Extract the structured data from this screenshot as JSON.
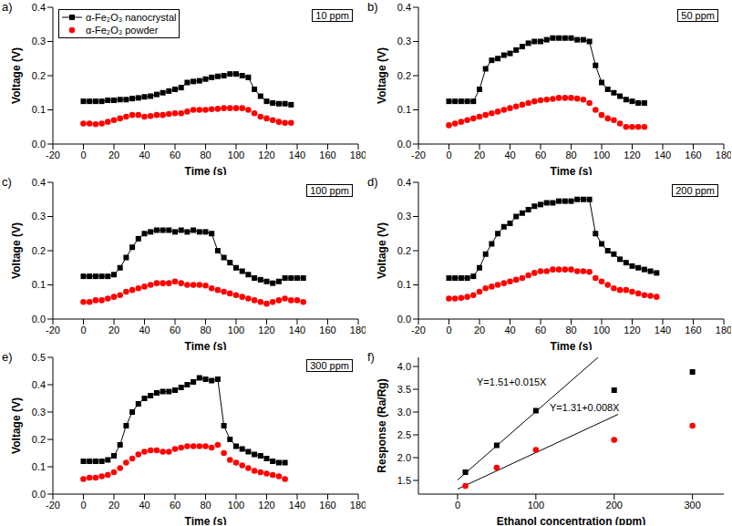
{
  "chart_data": [
    {
      "type": "line",
      "label": "a)",
      "annotation": "10 ppm",
      "x_label": "Time (s)",
      "y_label": "Voltage (V)",
      "legend": "upper left",
      "grid": false,
      "x": [
        0,
        4,
        8,
        12,
        16,
        20,
        24,
        28,
        32,
        36,
        40,
        44,
        48,
        52,
        56,
        60,
        64,
        68,
        72,
        76,
        80,
        84,
        88,
        92,
        96,
        100,
        104,
        108,
        112,
        116,
        120,
        124,
        128,
        132,
        136
      ],
      "xlim": [
        -20,
        180
      ],
      "xticks": [
        -20,
        0,
        20,
        40,
        60,
        80,
        100,
        120,
        140,
        160,
        180
      ],
      "ylim": [
        0,
        0.4
      ],
      "yticks": [
        {
          "value": 0,
          "label": "0.0"
        },
        0.1,
        0.2,
        0.3,
        0.4
      ],
      "series": [
        {
          "name": "α-Fe₂O₃ nanocrystal",
          "color": "#000000",
          "marker": "square",
          "line_style": "solid",
          "values": [
            0.125,
            0.125,
            0.125,
            0.125,
            0.128,
            0.128,
            0.13,
            0.13,
            0.133,
            0.135,
            0.138,
            0.14,
            0.145,
            0.15,
            0.155,
            0.16,
            0.165,
            0.18,
            0.183,
            0.185,
            0.19,
            0.195,
            0.198,
            0.2,
            0.205,
            0.205,
            0.2,
            0.195,
            0.16,
            0.14,
            0.125,
            0.12,
            0.118,
            0.118,
            0.115
          ]
        },
        {
          "name": "α-Fe₂O₃ powder",
          "color": "#ff0000",
          "marker": "circle",
          "line_style": "none",
          "values": [
            0.06,
            0.06,
            0.058,
            0.06,
            0.065,
            0.07,
            0.075,
            0.08,
            0.085,
            0.085,
            0.08,
            0.082,
            0.085,
            0.085,
            0.088,
            0.09,
            0.09,
            0.095,
            0.1,
            0.1,
            0.1,
            0.102,
            0.103,
            0.105,
            0.105,
            0.105,
            0.105,
            0.1,
            0.09,
            0.08,
            0.075,
            0.07,
            0.065,
            0.062,
            0.062
          ]
        }
      ]
    },
    {
      "type": "line",
      "label": "b)",
      "annotation": "50 ppm",
      "x_label": "Time (s)",
      "y_label": "Voltage (V)",
      "grid": false,
      "x": [
        0,
        4,
        8,
        12,
        16,
        20,
        24,
        28,
        32,
        36,
        40,
        44,
        48,
        52,
        56,
        60,
        64,
        68,
        72,
        76,
        80,
        84,
        88,
        92,
        96,
        100,
        104,
        108,
        112,
        116,
        120,
        124,
        128
      ],
      "xlim": [
        -20,
        180
      ],
      "xticks": [
        -20,
        0,
        20,
        40,
        60,
        80,
        100,
        120,
        140,
        160,
        180
      ],
      "ylim": [
        0,
        0.4
      ],
      "yticks": [
        {
          "value": 0,
          "label": "0.0"
        },
        0.1,
        0.2,
        0.3,
        0.4
      ],
      "series": [
        {
          "name": "α-Fe₂O₃ nanocrystal",
          "color": "#000000",
          "marker": "square",
          "line_style": "solid",
          "values": [
            0.125,
            0.125,
            0.125,
            0.125,
            0.125,
            0.16,
            0.22,
            0.245,
            0.25,
            0.26,
            0.265,
            0.275,
            0.285,
            0.295,
            0.3,
            0.3,
            0.305,
            0.31,
            0.31,
            0.31,
            0.31,
            0.305,
            0.305,
            0.3,
            0.23,
            0.18,
            0.16,
            0.15,
            0.14,
            0.13,
            0.125,
            0.12,
            0.12
          ]
        },
        {
          "name": "α-Fe₂O₃ powder",
          "color": "#ff0000",
          "marker": "circle",
          "line_style": "none",
          "values": [
            0.055,
            0.06,
            0.065,
            0.07,
            0.075,
            0.08,
            0.085,
            0.09,
            0.095,
            0.1,
            0.105,
            0.11,
            0.115,
            0.12,
            0.125,
            0.128,
            0.13,
            0.132,
            0.135,
            0.135,
            0.135,
            0.133,
            0.13,
            0.12,
            0.1,
            0.085,
            0.075,
            0.07,
            0.06,
            0.05,
            0.05,
            0.05,
            0.05
          ]
        }
      ]
    },
    {
      "type": "line",
      "label": "c)",
      "annotation": "100 ppm",
      "x_label": "Time (s)",
      "y_label": "Voltage (V)",
      "grid": false,
      "x": [
        0,
        4,
        8,
        12,
        16,
        20,
        24,
        28,
        32,
        36,
        40,
        44,
        48,
        52,
        56,
        60,
        64,
        68,
        72,
        76,
        80,
        84,
        88,
        92,
        96,
        100,
        104,
        108,
        112,
        116,
        120,
        124,
        128,
        132,
        136,
        140,
        144
      ],
      "xlim": [
        -20,
        180
      ],
      "xticks": [
        -20,
        0,
        20,
        40,
        60,
        80,
        100,
        120,
        140,
        160,
        180
      ],
      "ylim": [
        0,
        0.4
      ],
      "yticks": [
        {
          "value": 0,
          "label": "0.0"
        },
        0.1,
        0.2,
        0.3,
        0.4
      ],
      "series": [
        {
          "name": "α-Fe₂O₃ nanocrystal",
          "color": "#000000",
          "marker": "square",
          "line_style": "solid",
          "values": [
            0.125,
            0.125,
            0.125,
            0.125,
            0.125,
            0.13,
            0.15,
            0.18,
            0.21,
            0.235,
            0.25,
            0.255,
            0.26,
            0.26,
            0.26,
            0.255,
            0.26,
            0.255,
            0.26,
            0.255,
            0.255,
            0.25,
            0.2,
            0.18,
            0.165,
            0.15,
            0.14,
            0.13,
            0.12,
            0.115,
            0.11,
            0.105,
            0.11,
            0.12,
            0.12,
            0.12,
            0.12
          ]
        },
        {
          "name": "α-Fe₂O₃ powder",
          "color": "#ff0000",
          "marker": "circle",
          "line_style": "none",
          "values": [
            0.05,
            0.05,
            0.055,
            0.055,
            0.06,
            0.065,
            0.07,
            0.08,
            0.085,
            0.09,
            0.095,
            0.1,
            0.105,
            0.105,
            0.105,
            0.11,
            0.105,
            0.1,
            0.1,
            0.1,
            0.098,
            0.09,
            0.085,
            0.08,
            0.075,
            0.07,
            0.065,
            0.06,
            0.055,
            0.05,
            0.045,
            0.05,
            0.055,
            0.06,
            0.055,
            0.055,
            0.05
          ]
        }
      ]
    },
    {
      "type": "line",
      "label": "d)",
      "annotation": "200 ppm",
      "x_label": "Time (s)",
      "y_label": "Voltage (V)",
      "grid": false,
      "x": [
        0,
        4,
        8,
        12,
        16,
        20,
        24,
        28,
        32,
        36,
        40,
        44,
        48,
        52,
        56,
        60,
        64,
        68,
        72,
        76,
        80,
        84,
        88,
        92,
        96,
        100,
        104,
        108,
        112,
        116,
        120,
        124,
        128,
        132,
        136
      ],
      "xlim": [
        -20,
        180
      ],
      "xticks": [
        -20,
        0,
        20,
        40,
        60,
        80,
        100,
        120,
        140,
        160,
        180
      ],
      "ylim": [
        0,
        0.4
      ],
      "yticks": [
        {
          "value": 0,
          "label": "0.0"
        },
        0.1,
        0.2,
        0.3,
        0.4
      ],
      "series": [
        {
          "name": "α-Fe₂O₃ nanocrystal",
          "color": "#000000",
          "marker": "square",
          "line_style": "solid",
          "values": [
            0.12,
            0.12,
            0.12,
            0.12,
            0.125,
            0.15,
            0.19,
            0.22,
            0.25,
            0.27,
            0.28,
            0.3,
            0.31,
            0.32,
            0.33,
            0.335,
            0.34,
            0.34,
            0.345,
            0.345,
            0.345,
            0.35,
            0.35,
            0.35,
            0.25,
            0.22,
            0.2,
            0.19,
            0.175,
            0.165,
            0.155,
            0.15,
            0.145,
            0.14,
            0.135
          ]
        },
        {
          "name": "α-Fe₂O₃ powder",
          "color": "#ff0000",
          "marker": "circle",
          "line_style": "none",
          "values": [
            0.06,
            0.06,
            0.062,
            0.065,
            0.07,
            0.08,
            0.09,
            0.095,
            0.1,
            0.105,
            0.11,
            0.115,
            0.12,
            0.128,
            0.135,
            0.14,
            0.14,
            0.145,
            0.145,
            0.145,
            0.145,
            0.14,
            0.14,
            0.138,
            0.12,
            0.11,
            0.1,
            0.09,
            0.085,
            0.085,
            0.08,
            0.075,
            0.07,
            0.068,
            0.065
          ]
        }
      ]
    },
    {
      "type": "line",
      "label": "e)",
      "annotation": "300 ppm",
      "x_label": "Time (s)",
      "y_label": "Voltage (V)",
      "grid": false,
      "x": [
        0,
        4,
        8,
        12,
        16,
        20,
        24,
        28,
        32,
        36,
        40,
        44,
        48,
        52,
        56,
        60,
        64,
        68,
        72,
        76,
        80,
        84,
        88,
        92,
        96,
        100,
        104,
        108,
        112,
        116,
        120,
        124,
        128,
        132
      ],
      "xlim": [
        -20,
        180
      ],
      "xticks": [
        -20,
        0,
        20,
        40,
        60,
        80,
        100,
        120,
        140,
        160,
        180
      ],
      "ylim": [
        0,
        0.5
      ],
      "yticks": [
        {
          "value": 0,
          "label": "0.0"
        },
        0.1,
        0.2,
        0.3,
        0.4,
        0.5
      ],
      "series": [
        {
          "name": "α-Fe₂O₃ nanocrystal",
          "color": "#000000",
          "marker": "square",
          "line_style": "solid",
          "values": [
            0.12,
            0.12,
            0.12,
            0.12,
            0.125,
            0.14,
            0.18,
            0.25,
            0.3,
            0.33,
            0.35,
            0.36,
            0.37,
            0.375,
            0.375,
            0.38,
            0.39,
            0.4,
            0.41,
            0.425,
            0.42,
            0.415,
            0.42,
            0.25,
            0.2,
            0.175,
            0.165,
            0.155,
            0.145,
            0.14,
            0.13,
            0.12,
            0.115,
            0.115
          ]
        },
        {
          "name": "α-Fe₂O₃ powder",
          "color": "#ff0000",
          "marker": "circle",
          "line_style": "none",
          "values": [
            0.055,
            0.06,
            0.06,
            0.065,
            0.07,
            0.08,
            0.095,
            0.115,
            0.13,
            0.145,
            0.155,
            0.16,
            0.16,
            0.155,
            0.155,
            0.165,
            0.17,
            0.175,
            0.175,
            0.175,
            0.175,
            0.17,
            0.18,
            0.15,
            0.125,
            0.115,
            0.105,
            0.095,
            0.085,
            0.08,
            0.075,
            0.07,
            0.065,
            0.055
          ]
        }
      ]
    },
    {
      "type": "scatter",
      "label": "f)",
      "x_label": "Ethanol concentration (ppm)",
      "y_label": "Response (Ra/Rg)",
      "grid": false,
      "x": [
        10,
        50,
        100,
        200,
        300
      ],
      "xlim": [
        -50,
        340
      ],
      "xticks": [
        0,
        100,
        200,
        300
      ],
      "ylim": [
        1.2,
        4.2
      ],
      "yticks": [
        1.5,
        {
          "value": 2,
          "label": "2.0"
        },
        2.5,
        {
          "value": 3,
          "label": "3.0"
        },
        3.5,
        {
          "value": 4,
          "label": "4.0"
        }
      ],
      "series": [
        {
          "name": "α-Fe₂O₃ nanocrystal",
          "color": "#000000",
          "marker": "square",
          "line_style": "none",
          "values": [
            1.68,
            2.27,
            3.03,
            3.48,
            3.88
          ]
        },
        {
          "name": "α-Fe₂O₃ powder",
          "color": "#ff0000",
          "marker": "circle",
          "line_style": "none",
          "values": [
            1.38,
            1.78,
            2.17,
            2.39,
            2.7
          ]
        }
      ],
      "fit_lines": [
        {
          "label": "Y=1.51+0.015X",
          "color": "#000000",
          "x": [
            0,
            180
          ],
          "values": [
            1.51,
            4.21
          ]
        },
        {
          "label": "Y=1.31+0.008X",
          "color": "#000000",
          "x": [
            0,
            205
          ],
          "values": [
            1.31,
            2.95
          ]
        }
      ]
    }
  ]
}
